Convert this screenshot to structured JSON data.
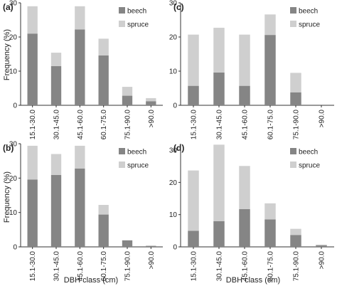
{
  "figure": {
    "y_axis_label": "Frequency (%)",
    "x_axis_label": "DBH class (cm)"
  },
  "colors": {
    "beech": "#858585",
    "spruce": "#cfcfcf",
    "axis": "#333333"
  },
  "chart_data": [
    {
      "panel_label": "(a)",
      "type": "bar",
      "stacked": true,
      "categories": [
        "15.1-30.0",
        "30.1-45.0",
        "45.1-60.0",
        "60.1-75.0",
        "75.1-90.0",
        ">90.0"
      ],
      "series": [
        {
          "name": "beech",
          "values": [
            21.0,
            11.5,
            22.2,
            14.6,
            2.8,
            1.2
          ]
        },
        {
          "name": "spruce",
          "values": [
            8.0,
            3.9,
            6.8,
            4.9,
            2.6,
            0.9
          ]
        }
      ],
      "ylim": [
        0,
        30
      ],
      "yticks": [
        0,
        10,
        20,
        30
      ],
      "legend": "top-right",
      "ylabel": "Frequency (%)",
      "xlabel": ""
    },
    {
      "panel_label": "(c)",
      "type": "bar",
      "stacked": true,
      "categories": [
        "15.1-30.0",
        "30.1-45.0",
        "45.1-60.0",
        "60.1-75.0",
        "75.1-90.0",
        ">90.0"
      ],
      "series": [
        {
          "name": "beech",
          "values": [
            5.7,
            9.6,
            5.7,
            20.6,
            3.8,
            0
          ]
        },
        {
          "name": "spruce",
          "values": [
            15.0,
            13.1,
            15.0,
            6.0,
            5.7,
            0
          ]
        }
      ],
      "ylim": [
        0,
        30
      ],
      "yticks": [
        0,
        10,
        20,
        30
      ],
      "legend": "top-right",
      "ylabel": "",
      "xlabel": ""
    },
    {
      "panel_label": "(b)",
      "type": "bar",
      "stacked": true,
      "categories": [
        "15.1-30.0",
        "30.1-45.0",
        "45.1-60.0",
        "60.1-75.0",
        "75.1-90.0",
        ">90.0"
      ],
      "series": [
        {
          "name": "beech",
          "values": [
            19.6,
            20.9,
            22.8,
            9.4,
            1.9,
            0.3
          ]
        },
        {
          "name": "spruce",
          "values": [
            9.8,
            6.1,
            6.6,
            2.8,
            0,
            0
          ]
        }
      ],
      "ylim": [
        0,
        30
      ],
      "yticks": [
        0,
        10,
        20,
        30
      ],
      "legend": "top-right",
      "ylabel": "Frequency (%)",
      "xlabel": "DBH class (cm)"
    },
    {
      "panel_label": "(d)",
      "type": "bar",
      "stacked": true,
      "categories": [
        "15.1-30.0",
        "30.1-45.0",
        "45.1-60.0",
        "60.1-75.0",
        "75.1-90.0",
        ">90.0"
      ],
      "series": [
        {
          "name": "beech",
          "values": [
            5.0,
            8.0,
            11.7,
            8.5,
            3.7,
            0.5
          ]
        },
        {
          "name": "spruce",
          "values": [
            18.7,
            23.7,
            13.4,
            5.0,
            1.9,
            0.2
          ]
        }
      ],
      "ylim": [
        0,
        32
      ],
      "yticks": [
        0,
        10,
        20,
        30
      ],
      "legend": "top-right",
      "ylabel": "",
      "xlabel": "DBH class (cm)"
    }
  ]
}
